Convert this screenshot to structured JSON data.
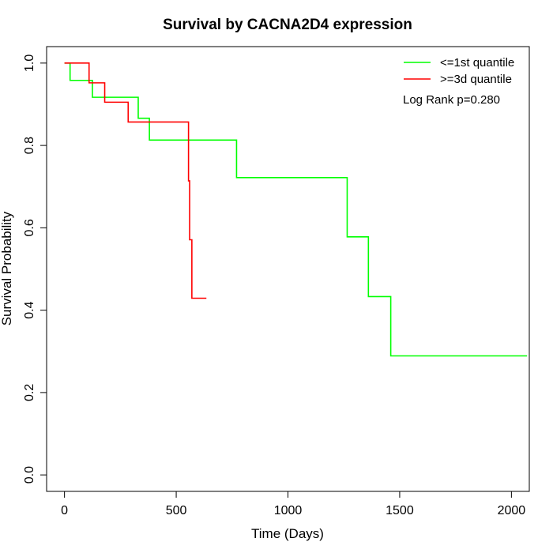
{
  "chart_data": {
    "type": "line",
    "title": "Survival by CACNA2D4 expression",
    "xlabel": "Time (Days)",
    "ylabel": "Survival Probability",
    "xlim": [
      -80,
      2080
    ],
    "ylim": [
      -0.04,
      1.04
    ],
    "x_ticks": [
      0,
      500,
      1000,
      1500,
      2000
    ],
    "y_ticks": [
      0.0,
      0.2,
      0.4,
      0.6,
      0.8,
      1.0
    ],
    "x_tick_labels": [
      "0",
      "500",
      "1000",
      "1500",
      "2000"
    ],
    "y_tick_labels": [
      "0.0",
      "0.2",
      "0.4",
      "0.6",
      "0.8",
      "1.0"
    ],
    "grid": false,
    "legend_position": "top-right",
    "annotation": "Log Rank p=0.280",
    "series": [
      {
        "name": "<=1st quantile",
        "color": "#00ff00",
        "step_points": [
          [
            0,
            1.0
          ],
          [
            25,
            0.958
          ],
          [
            125,
            0.917
          ],
          [
            330,
            0.866
          ],
          [
            380,
            0.813
          ],
          [
            770,
            0.722
          ],
          [
            1265,
            0.578
          ],
          [
            1360,
            0.433
          ],
          [
            1460,
            0.289
          ],
          [
            2070,
            0.289
          ]
        ]
      },
      {
        "name": ">=3d quantile",
        "color": "#ff0000",
        "step_points": [
          [
            0,
            1.0
          ],
          [
            110,
            0.952
          ],
          [
            180,
            0.905
          ],
          [
            285,
            0.857
          ],
          [
            555,
            0.714
          ],
          [
            560,
            0.571
          ],
          [
            570,
            0.429
          ],
          [
            635,
            0.429
          ]
        ]
      }
    ]
  }
}
